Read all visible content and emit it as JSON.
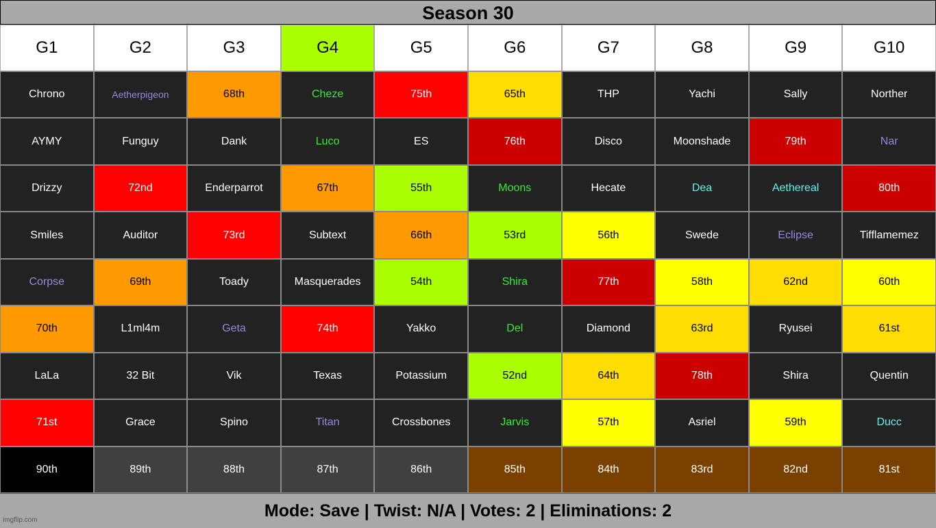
{
  "title": "Season 30",
  "footer": "Mode: Save | Twist: N/A | Votes: 2 | Eliminations: 2",
  "watermark": "imgflip.com",
  "colors": {
    "dark": "#222222",
    "white_text": "#ffffff",
    "green_text": "#33ee33",
    "purple_text": "#9988dd",
    "cyan_text": "#66eeee",
    "header_bg": "#ffffff",
    "header_active": "#aaff00",
    "red": "#ff0000",
    "darkred": "#cc0000",
    "orange": "#ff9900",
    "gold": "#ffdd00",
    "yellow": "#ffff00",
    "lime": "#aaff00",
    "black": "#000000",
    "gray": "#404040",
    "brown": "#7a4000"
  },
  "headers": [
    {
      "label": "G1",
      "active": false
    },
    {
      "label": "G2",
      "active": false
    },
    {
      "label": "G3",
      "active": false
    },
    {
      "label": "G4",
      "active": true
    },
    {
      "label": "G5",
      "active": false
    },
    {
      "label": "G6",
      "active": false
    },
    {
      "label": "G7",
      "active": false
    },
    {
      "label": "G8",
      "active": false
    },
    {
      "label": "G9",
      "active": false
    },
    {
      "label": "G10",
      "active": false
    }
  ],
  "rows": [
    [
      {
        "t": "Chrono",
        "bg": "dark",
        "fg": "white"
      },
      {
        "t": "Aetherpigeon",
        "bg": "dark",
        "fg": "purple",
        "small": true
      },
      {
        "t": "68th",
        "bg": "orange",
        "fg": "black"
      },
      {
        "t": "Cheze",
        "bg": "dark",
        "fg": "green"
      },
      {
        "t": "75th",
        "bg": "red",
        "fg": "white"
      },
      {
        "t": "65th",
        "bg": "gold",
        "fg": "black"
      },
      {
        "t": "THP",
        "bg": "dark",
        "fg": "white"
      },
      {
        "t": "Yachi",
        "bg": "dark",
        "fg": "white"
      },
      {
        "t": "Sally",
        "bg": "dark",
        "fg": "white"
      },
      {
        "t": "Norther",
        "bg": "dark",
        "fg": "white"
      }
    ],
    [
      {
        "t": "AYMY",
        "bg": "dark",
        "fg": "white"
      },
      {
        "t": "Funguy",
        "bg": "dark",
        "fg": "white"
      },
      {
        "t": "Dank",
        "bg": "dark",
        "fg": "white"
      },
      {
        "t": "Luco",
        "bg": "dark",
        "fg": "green"
      },
      {
        "t": "ES",
        "bg": "dark",
        "fg": "white"
      },
      {
        "t": "76th",
        "bg": "darkred",
        "fg": "white"
      },
      {
        "t": "Disco",
        "bg": "dark",
        "fg": "white"
      },
      {
        "t": "Moonshade",
        "bg": "dark",
        "fg": "white"
      },
      {
        "t": "79th",
        "bg": "darkred",
        "fg": "white"
      },
      {
        "t": "Nar",
        "bg": "dark",
        "fg": "purple"
      }
    ],
    [
      {
        "t": "Drizzy",
        "bg": "dark",
        "fg": "white"
      },
      {
        "t": "72nd",
        "bg": "red",
        "fg": "white"
      },
      {
        "t": "Enderparrot",
        "bg": "dark",
        "fg": "white"
      },
      {
        "t": "67th",
        "bg": "orange",
        "fg": "black"
      },
      {
        "t": "55th",
        "bg": "lime",
        "fg": "black"
      },
      {
        "t": "Moons",
        "bg": "dark",
        "fg": "green"
      },
      {
        "t": "Hecate",
        "bg": "dark",
        "fg": "white"
      },
      {
        "t": "Dea",
        "bg": "dark",
        "fg": "cyan"
      },
      {
        "t": "Aethereal",
        "bg": "dark",
        "fg": "cyan"
      },
      {
        "t": "80th",
        "bg": "darkred",
        "fg": "white"
      }
    ],
    [
      {
        "t": "Smiles",
        "bg": "dark",
        "fg": "white"
      },
      {
        "t": "Auditor",
        "bg": "dark",
        "fg": "white"
      },
      {
        "t": "73rd",
        "bg": "red",
        "fg": "white"
      },
      {
        "t": "Subtext",
        "bg": "dark",
        "fg": "white"
      },
      {
        "t": "66th",
        "bg": "orange",
        "fg": "black"
      },
      {
        "t": "53rd",
        "bg": "lime",
        "fg": "black"
      },
      {
        "t": "56th",
        "bg": "yellow",
        "fg": "black"
      },
      {
        "t": "Swede",
        "bg": "dark",
        "fg": "white"
      },
      {
        "t": "Eclipse",
        "bg": "dark",
        "fg": "purple"
      },
      {
        "t": "Tifflamemez",
        "bg": "dark",
        "fg": "white"
      }
    ],
    [
      {
        "t": "Corpse",
        "bg": "dark",
        "fg": "purple"
      },
      {
        "t": "69th",
        "bg": "orange",
        "fg": "black"
      },
      {
        "t": "Toady",
        "bg": "dark",
        "fg": "white"
      },
      {
        "t": "Masquerades",
        "bg": "dark",
        "fg": "white"
      },
      {
        "t": "54th",
        "bg": "lime",
        "fg": "black"
      },
      {
        "t": "Shira",
        "bg": "dark",
        "fg": "green"
      },
      {
        "t": "77th",
        "bg": "darkred",
        "fg": "white"
      },
      {
        "t": "58th",
        "bg": "yellow",
        "fg": "black"
      },
      {
        "t": "62nd",
        "bg": "gold",
        "fg": "black"
      },
      {
        "t": "60th",
        "bg": "yellow",
        "fg": "black"
      }
    ],
    [
      {
        "t": "70th",
        "bg": "orange",
        "fg": "black"
      },
      {
        "t": "L1ml4m",
        "bg": "dark",
        "fg": "white"
      },
      {
        "t": "Geta",
        "bg": "dark",
        "fg": "purple"
      },
      {
        "t": "74th",
        "bg": "red",
        "fg": "white"
      },
      {
        "t": "Yakko",
        "bg": "dark",
        "fg": "white"
      },
      {
        "t": "Del",
        "bg": "dark",
        "fg": "green"
      },
      {
        "t": "Diamond",
        "bg": "dark",
        "fg": "white"
      },
      {
        "t": "63rd",
        "bg": "gold",
        "fg": "black"
      },
      {
        "t": "Ryusei",
        "bg": "dark",
        "fg": "white"
      },
      {
        "t": "61st",
        "bg": "gold",
        "fg": "black"
      }
    ],
    [
      {
        "t": "LaLa",
        "bg": "dark",
        "fg": "white"
      },
      {
        "t": "32 Bit",
        "bg": "dark",
        "fg": "white"
      },
      {
        "t": "Vik",
        "bg": "dark",
        "fg": "white"
      },
      {
        "t": "Texas",
        "bg": "dark",
        "fg": "white"
      },
      {
        "t": "Potassium",
        "bg": "dark",
        "fg": "white"
      },
      {
        "t": "52nd",
        "bg": "lime",
        "fg": "black"
      },
      {
        "t": "64th",
        "bg": "gold",
        "fg": "black"
      },
      {
        "t": "78th",
        "bg": "darkred",
        "fg": "white"
      },
      {
        "t": "Shira",
        "bg": "dark",
        "fg": "white"
      },
      {
        "t": "Quentin",
        "bg": "dark",
        "fg": "white"
      }
    ],
    [
      {
        "t": "71st",
        "bg": "red",
        "fg": "white"
      },
      {
        "t": "Grace",
        "bg": "dark",
        "fg": "white"
      },
      {
        "t": "Spino",
        "bg": "dark",
        "fg": "white"
      },
      {
        "t": "Titan",
        "bg": "dark",
        "fg": "purple"
      },
      {
        "t": "Crossbones",
        "bg": "dark",
        "fg": "white"
      },
      {
        "t": "Jarvis",
        "bg": "dark",
        "fg": "green"
      },
      {
        "t": "57th",
        "bg": "yellow",
        "fg": "black"
      },
      {
        "t": "Asriel",
        "bg": "dark",
        "fg": "white"
      },
      {
        "t": "59th",
        "bg": "yellow",
        "fg": "black"
      },
      {
        "t": "Ducc",
        "bg": "dark",
        "fg": "cyan"
      }
    ],
    [
      {
        "t": "90th",
        "bg": "black",
        "fg": "white"
      },
      {
        "t": "89th",
        "bg": "gray",
        "fg": "white"
      },
      {
        "t": "88th",
        "bg": "gray",
        "fg": "white"
      },
      {
        "t": "87th",
        "bg": "gray",
        "fg": "white"
      },
      {
        "t": "86th",
        "bg": "gray",
        "fg": "white"
      },
      {
        "t": "85th",
        "bg": "brown",
        "fg": "white"
      },
      {
        "t": "84th",
        "bg": "brown",
        "fg": "white"
      },
      {
        "t": "83rd",
        "bg": "brown",
        "fg": "white"
      },
      {
        "t": "82nd",
        "bg": "brown",
        "fg": "white"
      },
      {
        "t": "81st",
        "bg": "brown",
        "fg": "white"
      }
    ]
  ]
}
